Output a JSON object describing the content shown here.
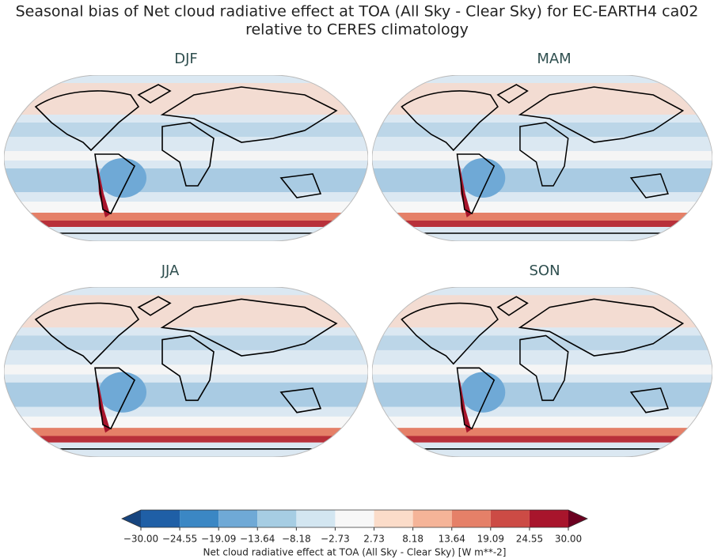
{
  "title": "Seasonal bias of Net cloud radiative effect at TOA (All Sky - Clear Sky) for EC-EARTH4 ca02",
  "subtitle": "relative to CERES climatology",
  "panels": [
    {
      "title": "DJF"
    },
    {
      "title": "MAM"
    },
    {
      "title": "JJA"
    },
    {
      "title": "SON"
    }
  ],
  "colorbar": {
    "label": "Net cloud radiative effect at TOA (All Sky - Clear Sky) [W m**-2]",
    "ticks": [
      {
        "value": -30,
        "label": "−30.00"
      },
      {
        "value": -24.55,
        "label": "−24.55"
      },
      {
        "value": -19.09,
        "label": "−19.09"
      },
      {
        "value": -13.64,
        "label": "−13.64"
      },
      {
        "value": -8.18,
        "label": "−8.18"
      },
      {
        "value": -2.73,
        "label": "−2.73"
      },
      {
        "value": 2.73,
        "label": "2.73"
      },
      {
        "value": 8.18,
        "label": "8.18"
      },
      {
        "value": 13.64,
        "label": "13.64"
      },
      {
        "value": 19.09,
        "label": "19.09"
      },
      {
        "value": 24.55,
        "label": "24.55"
      },
      {
        "value": 30,
        "label": "30.00"
      }
    ],
    "colors": [
      "#1f5fa6",
      "#3b87c4",
      "#6fa9d6",
      "#a6cde3",
      "#d3e6f1",
      "#f7f7f7",
      "#fbdcc9",
      "#f5b498",
      "#e58068",
      "#cc4b45",
      "#a8152c"
    ],
    "extend_colors": [
      "#17457f",
      "#6b0020"
    ]
  }
}
